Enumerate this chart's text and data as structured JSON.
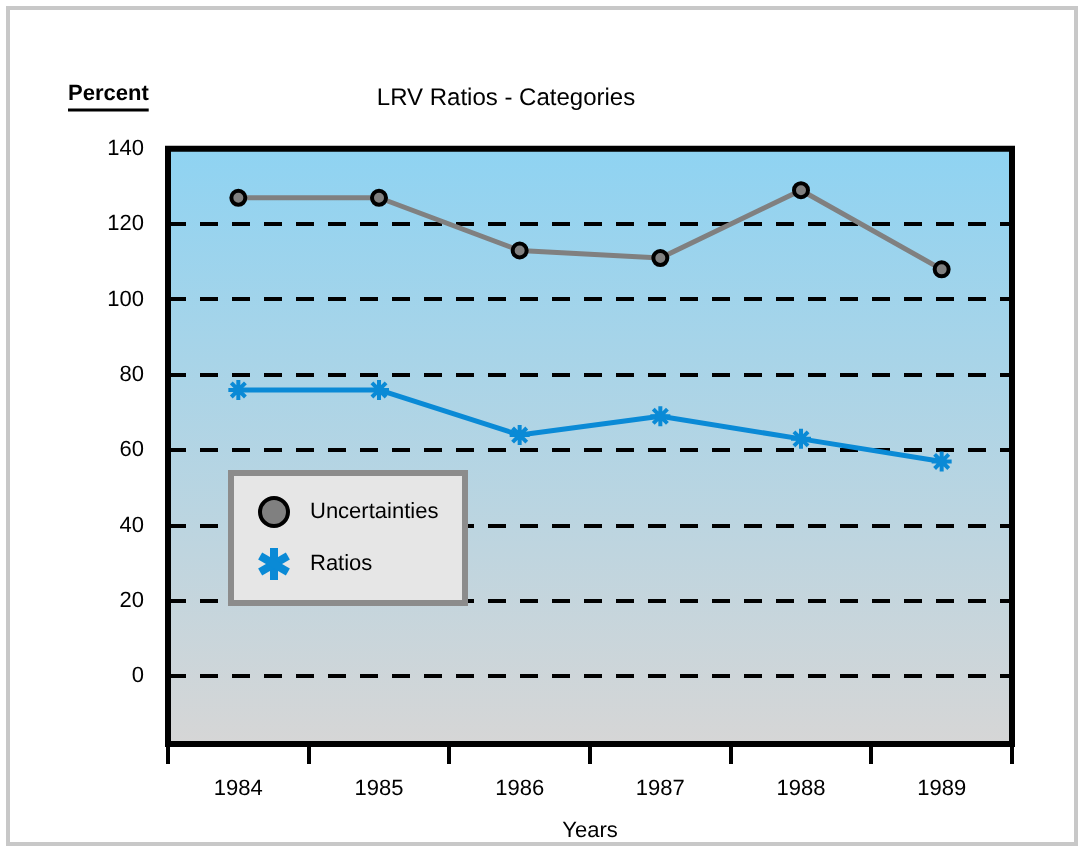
{
  "chart_data": {
    "type": "line",
    "title": "LRV Ratios - Categories",
    "ylabel": "Percent",
    "xlabel": "Years",
    "categories": [
      "1984",
      "1985",
      "1986",
      "1987",
      "1988",
      "1989"
    ],
    "series": [
      {
        "name": "Uncertainties",
        "color": "#808080",
        "marker": "circle",
        "values": [
          127,
          127,
          113,
          111,
          129,
          108
        ]
      },
      {
        "name": "Ratios",
        "color": "#0a8ad6",
        "marker": "cross",
        "values": [
          76,
          76,
          64,
          69,
          63,
          57
        ]
      }
    ],
    "ylim": [
      -18,
      140
    ],
    "yticks": [
      0,
      20,
      40,
      60,
      80,
      100,
      120,
      140
    ],
    "grid": "y",
    "line_style": "solid",
    "legend": "bottom left"
  }
}
